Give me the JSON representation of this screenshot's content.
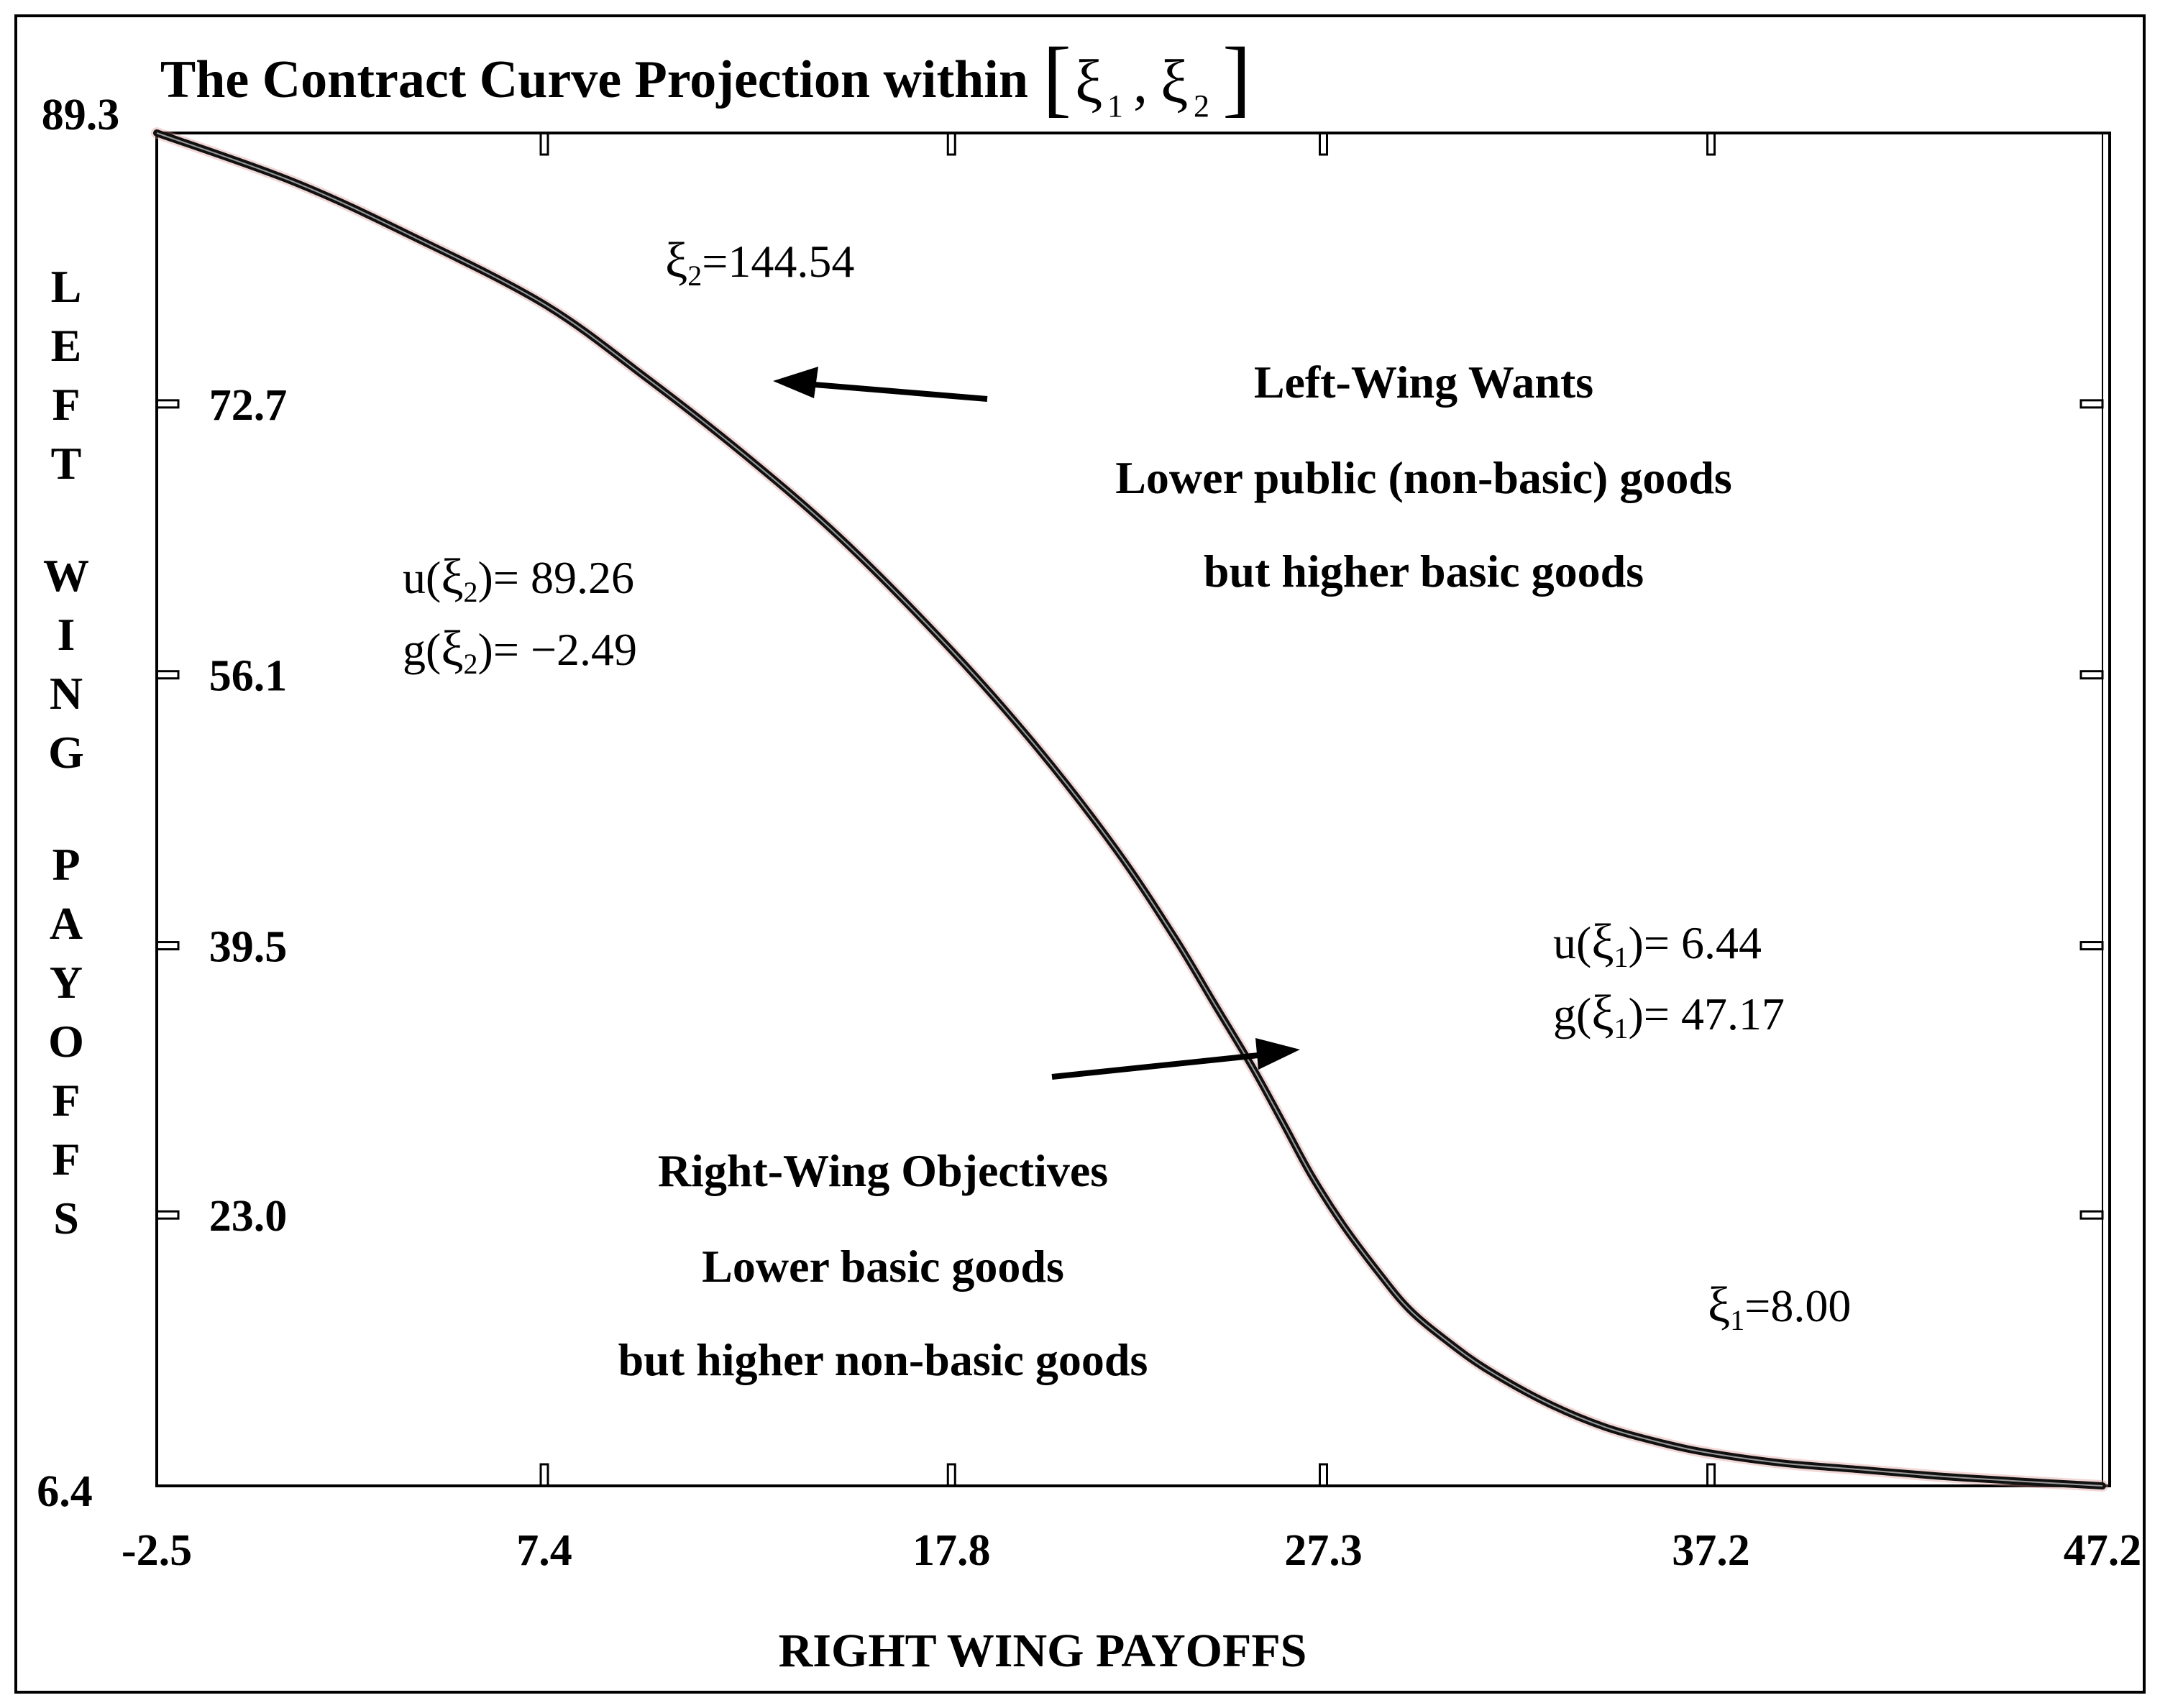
{
  "chart_data": {
    "type": "line",
    "title": "The Contract Curve Projection within",
    "title_bracket": {
      "xi1": "ξ",
      "sub1": "1",
      "comma": ",",
      "xi2": "ξ",
      "sub2": "2"
    },
    "xlabel": "RIGHT WING PAYOFFS",
    "ylabel": "LEFT WING PAYOFFS",
    "xlim": [
      -2.5,
      47.2
    ],
    "ylim": [
      6.4,
      89.3
    ],
    "x_ticks": [
      "-2.5",
      "7.4",
      "17.8",
      "27.3",
      "37.2",
      "47.2"
    ],
    "y_ticks": [
      "89.3",
      "72.7",
      "56.1",
      "39.5",
      "23.0",
      "6.4"
    ],
    "grid": false,
    "series": [
      {
        "color": "#111111",
        "x": [
          -2.5,
          1.0,
          4.0,
          7.4,
          10.0,
          12.5,
          15.0,
          17.8,
          20.0,
          22.0,
          23.5,
          24.5,
          25.5,
          26.3,
          27.0,
          27.8,
          28.7,
          29.5,
          30.5,
          31.5,
          33.0,
          34.5,
          36.0,
          37.2,
          39.0,
          41.0,
          43.0,
          45.0,
          47.2
        ],
        "y": [
          89.3,
          86.3,
          83.0,
          78.8,
          74.3,
          69.6,
          64.4,
          57.6,
          51.6,
          45.4,
          40.0,
          36.0,
          32.0,
          28.5,
          25.4,
          22.4,
          19.5,
          17.2,
          15.2,
          13.5,
          11.5,
          10.0,
          9.0,
          8.4,
          7.8,
          7.4,
          7.0,
          6.7,
          6.4
        ]
      }
    ],
    "annotations": [
      {
        "id": "xi2_label",
        "base": "ξ",
        "sub": "2",
        "text": "=144.54"
      },
      {
        "id": "u_xi2",
        "prefix": "u(",
        "base": "ξ",
        "sub": "2",
        "text": ")= 89.26"
      },
      {
        "id": "g_xi2",
        "prefix": "g(",
        "base": "ξ",
        "sub": "2",
        "text": ")= −2.49"
      },
      {
        "id": "u_xi1",
        "prefix": "u(",
        "base": "ξ",
        "sub": "1",
        "text": ")= 6.44"
      },
      {
        "id": "g_xi1",
        "prefix": "g(",
        "base": "ξ",
        "sub": "1",
        "text": ")= 47.17"
      },
      {
        "id": "xi1_label",
        "base": "ξ",
        "sub": "1",
        "text": "=8.00"
      }
    ],
    "left_wing_note": [
      "Left-Wing Wants",
      "Lower public (non-basic) goods",
      "but higher basic goods"
    ],
    "right_wing_note": [
      "Right-Wing Objectives",
      "Lower basic goods",
      "but higher non-basic goods"
    ]
  }
}
